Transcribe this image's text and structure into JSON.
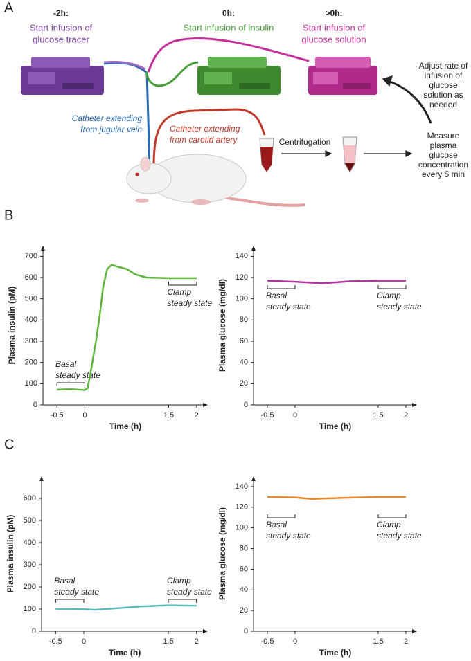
{
  "panel_labels": [
    "A",
    "B",
    "C"
  ],
  "diagram": {
    "pumps": [
      {
        "time": "-2h:",
        "lines": [
          "Start infusion of",
          "glucose tracer"
        ],
        "color": "#7b3fa0"
      },
      {
        "time": "0h:",
        "lines": [
          "Start infusion of insulin"
        ],
        "color": "#4a9e3a"
      },
      {
        "time": ">0h:",
        "lines": [
          "Start infusion of",
          "glucose solution"
        ],
        "color": "#c2309a"
      }
    ],
    "catheters": [
      {
        "lines": [
          "Catheter extending",
          "from jugular vein"
        ],
        "color": "#2a6bb5"
      },
      {
        "lines": [
          "Catheter extending",
          "from carotid artery"
        ],
        "color": "#c0392b"
      }
    ],
    "centrifugation": "Centrifugation",
    "measure": [
      "Measure",
      "plasma",
      "glucose",
      "concentration",
      "every 5 min"
    ],
    "adjust": [
      "Adjust rate of",
      "infusion of",
      "glucose",
      "solution as",
      "needed"
    ]
  },
  "chart_data": [
    {
      "type": "line",
      "ylabel": "Plasma insulin (pM)",
      "xlabel": "Time (h)",
      "color": "#5db33c",
      "x": [
        -0.5,
        -0.25,
        0,
        0.05,
        0.1,
        0.2,
        0.27,
        0.33,
        0.4,
        0.48,
        0.6,
        0.75,
        0.9,
        1.1,
        1.5,
        2
      ],
      "values": [
        72,
        74,
        70,
        80,
        150,
        300,
        430,
        560,
        640,
        660,
        650,
        640,
        615,
        600,
        597,
        597
      ],
      "xlim": [
        -0.75,
        2.2
      ],
      "ylim": [
        0,
        750
      ],
      "xticks": [
        -0.5,
        0,
        1.5,
        2
      ],
      "yticks": [
        0,
        100,
        200,
        300,
        400,
        500,
        600,
        700
      ],
      "annotations": [
        {
          "lines": [
            "Basal",
            "steady state"
          ]
        },
        {
          "lines": [
            "Clamp",
            "steady state"
          ]
        }
      ]
    },
    {
      "type": "line",
      "ylabel": "Plasma glucose (mg/dl)",
      "xlabel": "Time (h)",
      "color": "#b3349e",
      "x": [
        -0.5,
        0,
        0.5,
        1,
        1.5,
        2
      ],
      "values": [
        117,
        116,
        114.5,
        116.5,
        117,
        117
      ],
      "xlim": [
        -0.75,
        2.2
      ],
      "ylim": [
        0,
        150
      ],
      "xticks": [
        -0.5,
        0,
        1.5,
        2
      ],
      "yticks": [
        0,
        20,
        40,
        60,
        80,
        100,
        120,
        140
      ],
      "annotations": [
        {
          "lines": [
            "Basal",
            "steady state"
          ]
        },
        {
          "lines": [
            "Clamp",
            "steady state"
          ]
        }
      ]
    },
    {
      "type": "line",
      "ylabel": "Plasma insulin (pM)",
      "xlabel": "Time (h)",
      "color": "#5bbcbc",
      "x": [
        -0.5,
        0,
        0.2,
        0.5,
        1,
        1.5,
        2
      ],
      "values": [
        100,
        99,
        97,
        102,
        112,
        117,
        115
      ],
      "xlim": [
        -0.75,
        2.2
      ],
      "ylim": [
        0,
        700
      ],
      "xticks": [
        -0.5,
        0,
        1.5,
        2
      ],
      "yticks": [
        0,
        100,
        200,
        300,
        400,
        500,
        600
      ],
      "annotations": [
        {
          "lines": [
            "Basal",
            "steady state"
          ]
        },
        {
          "lines": [
            "Clamp",
            "steady state"
          ]
        }
      ]
    },
    {
      "type": "line",
      "ylabel": "Plasma glucose (mg/dl)",
      "xlabel": "Time (h)",
      "color": "#e8872b",
      "x": [
        -0.5,
        0,
        0.3,
        0.8,
        1.5,
        2
      ],
      "values": [
        130,
        129.5,
        128,
        129,
        130,
        130
      ],
      "xlim": [
        -0.75,
        2.2
      ],
      "ylim": [
        0,
        150
      ],
      "xticks": [
        -0.5,
        0,
        1.5,
        2
      ],
      "yticks": [
        0,
        20,
        40,
        60,
        80,
        100,
        120,
        140
      ],
      "annotations": [
        {
          "lines": [
            "Basal",
            "steady state"
          ]
        },
        {
          "lines": [
            "Clamp",
            "steady state"
          ]
        }
      ]
    }
  ]
}
